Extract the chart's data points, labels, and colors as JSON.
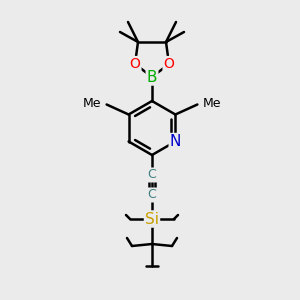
{
  "bg_color": "#ebebeb",
  "atom_colors": {
    "C": "#000000",
    "N": "#0000cc",
    "O": "#ff0000",
    "B": "#00aa00",
    "Si": "#c8a000"
  },
  "bond_color": "#000000",
  "bond_width": 1.8,
  "font_size": 10,
  "figure_size": [
    3.0,
    3.0
  ],
  "dpi": 100
}
